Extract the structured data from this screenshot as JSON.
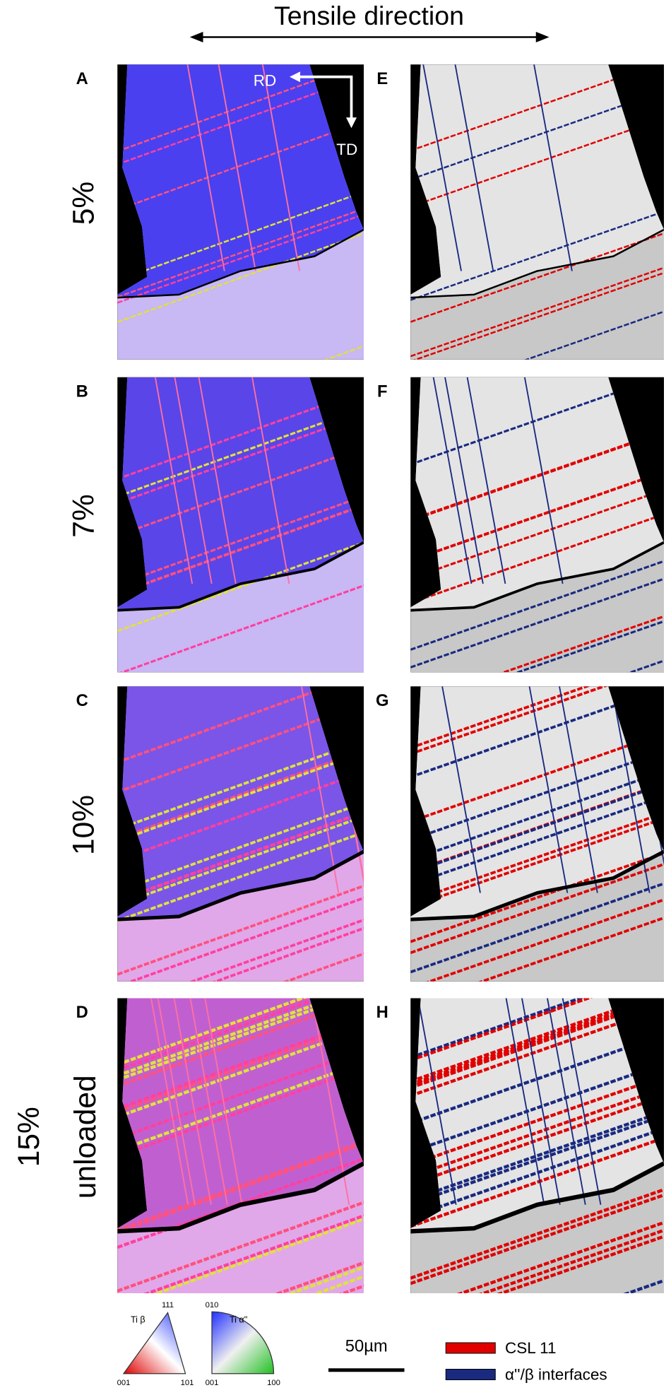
{
  "header": {
    "title": "Tensile direction"
  },
  "inset_axes": [
    "RD",
    "TD"
  ],
  "panels": [
    {
      "label": "A"
    },
    {
      "label": "B"
    },
    {
      "label": "C"
    },
    {
      "label": "D"
    },
    {
      "label": "E"
    },
    {
      "label": "F"
    },
    {
      "label": "G"
    },
    {
      "label": "H"
    }
  ],
  "rows": [
    {
      "label": "5%"
    },
    {
      "label": "7%"
    },
    {
      "label": "10%"
    },
    {
      "label": "15%",
      "sublabel": "unloaded"
    }
  ],
  "legend": {
    "ipf_beta": {
      "title": "Ti β",
      "corners": [
        "001",
        "101",
        "111"
      ]
    },
    "ipf_alpha": {
      "title": "Ti α''",
      "corners": [
        "001",
        "100",
        "010"
      ]
    },
    "scale_bar": "50µm",
    "boundaries": [
      {
        "name": "CSL 11",
        "color": "#e00000"
      },
      {
        "name": "α''/β interfaces",
        "color": "#1a2a80"
      }
    ]
  }
}
